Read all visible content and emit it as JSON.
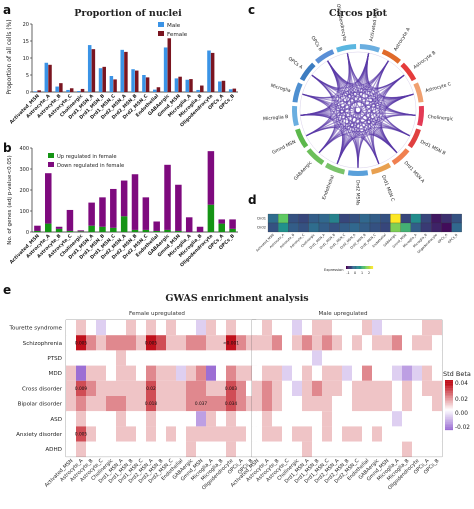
{
  "panel_letters": {
    "a": "a",
    "b": "b",
    "c": "c",
    "d": "d",
    "e": "e"
  },
  "chart_data": [
    {
      "id": "a",
      "type": "bar",
      "title": "Proportion of nuclei",
      "ylabel": "Proportion of all cells (%)",
      "ylim": [
        0,
        20
      ],
      "yticks": [
        0,
        5,
        10,
        15,
        20
      ],
      "categories": [
        "Activated_MSN",
        "Astrocyte_A",
        "Astrocyte_B",
        "Astrocyte_C",
        "Cholinergic",
        "Drd1_MSN_A",
        "Drd1_MSN_B",
        "Drd1_MSN_C",
        "Drd2_MSN_A",
        "Drd2_MSN_B",
        "Drd2_MSN_C",
        "Endothelial",
        "GABAergic",
        "Gmnd_MSN",
        "Microglia_A",
        "Microglia_B",
        "Oligodendrocyte",
        "OPCs_A",
        "OPCs_B"
      ],
      "legend": [
        "Male",
        "Female"
      ],
      "series": [
        {
          "name": "Male",
          "color": "#3a93e6",
          "values": [
            0.2,
            8.6,
            1.6,
            0.6,
            0.3,
            13.8,
            7.0,
            4.7,
            12.4,
            6.7,
            5.0,
            0.7,
            13.1,
            4.0,
            3.6,
            0.6,
            12.2,
            3.1,
            0.8
          ]
        },
        {
          "name": "Female",
          "color": "#7a1520",
          "values": [
            0.5,
            8.0,
            2.6,
            1.1,
            0.9,
            12.6,
            7.4,
            3.7,
            11.8,
            6.3,
            4.3,
            1.4,
            15.8,
            4.5,
            3.8,
            1.9,
            11.5,
            3.3,
            1.0
          ]
        }
      ]
    },
    {
      "id": "b",
      "type": "bar",
      "stacked": true,
      "ylabel": "No. of genes (adj p-value<0.05)",
      "ylim": [
        0,
        400
      ],
      "yticks": [
        0,
        100,
        200,
        300,
        400
      ],
      "categories": [
        "Activated_MSN",
        "Astrocyte_A",
        "Astrocyte_B",
        "Astrocyte_C",
        "Cholinergic",
        "Drd1_MSN_A",
        "Drd1_MSN_B",
        "Drd1_MSN_C",
        "Drd2_MSN_A",
        "Drd2_MSN_B",
        "Drd2_MSN_C",
        "Endothelial",
        "GABAergic",
        "Gmnd_MSN",
        "Microglia_A",
        "Microglia_B",
        "Oligodendrocyte",
        "OPCs_A",
        "OPCs_B"
      ],
      "legend": [
        "Up regulated in female",
        "Down regulated in female"
      ],
      "series": [
        {
          "name": "Up regulated in female",
          "color": "#159415",
          "values": [
            5,
            40,
            15,
            5,
            3,
            30,
            25,
            20,
            75,
            10,
            10,
            5,
            10,
            5,
            0,
            0,
            130,
            40,
            15
          ]
        },
        {
          "name": "Down regulated in female",
          "color": "#7e0a7e",
          "values": [
            25,
            240,
            10,
            100,
            5,
            110,
            140,
            185,
            170,
            265,
            155,
            45,
            310,
            220,
            70,
            25,
            255,
            20,
            45
          ]
        }
      ]
    },
    {
      "id": "d",
      "type": "heatmap",
      "rows": [
        "Drd1",
        "Drd2"
      ],
      "columns": [
        "Activated_MSN",
        "Astrocyte_A",
        "Astrocyte_B",
        "Astrocyte_C",
        "Cholinergic",
        "Drd1_MSN_A",
        "Drd1_MSN_B",
        "Drd1_MSN_C",
        "Drd2_MSN_A",
        "Drd2_MSN_B",
        "Drd2_MSN_C",
        "Endothelial",
        "GABAergic",
        "Gmnd_MSN",
        "Microglia_A",
        "Microglia_B",
        "Oligodendrocyte",
        "OPCs_A",
        "OPCs_B"
      ],
      "values": [
        [
          -0.2,
          1.2,
          -0.5,
          -0.6,
          -0.4,
          -0.3,
          0.2,
          -0.6,
          -0.5,
          -0.3,
          -0.4,
          -0.5,
          2.2,
          -0.6,
          0.4,
          -0.6,
          -1.0,
          -0.8,
          -0.5
        ],
        [
          -0.5,
          0.5,
          -0.4,
          -0.5,
          -0.2,
          -0.4,
          -0.5,
          -0.4,
          -0.3,
          -0.4,
          -0.5,
          -0.6,
          1.4,
          0.9,
          -0.4,
          -0.7,
          -0.9,
          -1.1,
          -0.3
        ]
      ],
      "colorbar_label": "Expression",
      "colorbar_ticks": [
        -1,
        0,
        1,
        2
      ]
    },
    {
      "id": "e",
      "type": "heatmap",
      "title": "GWAS enrichment analysis",
      "facets": [
        "Female upregulated",
        "Male upregulated"
      ],
      "rows": [
        "Tourette syndrome",
        "Schizophrenia",
        "PTSD",
        "MDD",
        "Cross disorder",
        "Bipolar disorder",
        "ASD",
        "Anxiety disorder",
        "ADHD"
      ],
      "columns": [
        "Activated_MSN",
        "Astrocyte_A",
        "Astrocyte_B",
        "Astrocyte_C",
        "Cholinergic",
        "Drd1_MSN_A",
        "Drd1_MSN_B",
        "Drd1_MSN_C",
        "Drd2_MSN_A",
        "Drd2_MSN_B",
        "Drd2_MSN_C",
        "Endothelial",
        "GABAergic",
        "Gmnd_MSN",
        "Microglia_A",
        "Microglia_B",
        "Oligodendrocyte",
        "OPCs_A",
        "OPCs_B"
      ],
      "female_values": [
        [
          0.0,
          0.01,
          0.0,
          -0.01,
          0.0,
          0.0,
          0.01,
          0.0,
          0.01,
          0.0,
          0.01,
          0.0,
          0.0,
          -0.01,
          0.01,
          0.0,
          0.01,
          0.0,
          0.0
        ],
        [
          0.0,
          0.04,
          0.02,
          0.01,
          0.02,
          0.02,
          0.02,
          0.01,
          0.04,
          0.03,
          0.01,
          0.01,
          0.02,
          0.02,
          0.01,
          0.01,
          0.04,
          0.02,
          0.01
        ],
        [
          0.0,
          0.0,
          0.0,
          0.0,
          0.0,
          0.01,
          0.0,
          0.0,
          0.0,
          0.0,
          0.0,
          0.0,
          0.0,
          0.0,
          0.0,
          0.0,
          0.0,
          0.0,
          0.0
        ],
        [
          0.01,
          -0.03,
          0.01,
          0.01,
          0.0,
          0.01,
          0.01,
          0.0,
          0.02,
          0.01,
          0.01,
          -0.01,
          0.01,
          0.02,
          -0.03,
          0.0,
          0.02,
          0.01,
          0.01
        ],
        [
          0.01,
          0.03,
          0.02,
          0.01,
          0.01,
          0.01,
          0.01,
          0.01,
          0.03,
          0.01,
          0.01,
          0.01,
          0.02,
          0.02,
          0.01,
          0.01,
          0.03,
          0.02,
          0.0
        ],
        [
          0.01,
          0.02,
          0.01,
          0.01,
          0.02,
          0.02,
          0.01,
          0.01,
          0.03,
          0.01,
          0.01,
          0.01,
          0.02,
          0.02,
          0.02,
          0.02,
          0.03,
          0.02,
          0.01
        ],
        [
          0.0,
          0.01,
          0.0,
          0.0,
          0.0,
          0.01,
          0.0,
          0.0,
          0.01,
          0.0,
          0.0,
          0.0,
          0.0,
          -0.02,
          0.01,
          0.0,
          0.01,
          0.0,
          0.0
        ],
        [
          0.0,
          0.03,
          0.01,
          0.0,
          0.0,
          0.01,
          0.01,
          0.0,
          0.01,
          0.0,
          0.01,
          0.0,
          0.01,
          0.01,
          0.01,
          0.01,
          0.01,
          0.01,
          0.0
        ],
        [
          0.0,
          0.01,
          0.0,
          0.0,
          0.0,
          0.0,
          0.0,
          0.0,
          0.0,
          0.0,
          0.0,
          0.0,
          0.01,
          0.0,
          0.0,
          0.0,
          0.01,
          0.0,
          0.0
        ]
      ],
      "male_values": [
        [
          0.0,
          0.01,
          0.0,
          0.0,
          -0.01,
          0.0,
          0.01,
          0.01,
          0.0,
          0.0,
          0.0,
          0.01,
          -0.01,
          0.0,
          0.0,
          0.0,
          0.0,
          0.01,
          0.01
        ],
        [
          0.01,
          0.01,
          0.02,
          0.0,
          0.01,
          0.02,
          0.01,
          0.02,
          0.01,
          0.0,
          0.01,
          0.0,
          0.01,
          0.01,
          0.02,
          0.0,
          0.01,
          0.01,
          0.0
        ],
        [
          0.0,
          0.0,
          0.0,
          0.0,
          0.0,
          0.0,
          -0.01,
          0.0,
          0.0,
          0.0,
          0.0,
          0.0,
          0.0,
          0.0,
          0.0,
          0.0,
          0.0,
          0.0,
          0.0
        ],
        [
          0.0,
          0.01,
          0.01,
          -0.01,
          0.0,
          0.01,
          0.0,
          0.01,
          0.01,
          -0.01,
          0.0,
          0.02,
          0.0,
          0.0,
          -0.01,
          -0.02,
          -0.01,
          0.01,
          0.0
        ],
        [
          0.01,
          0.02,
          0.01,
          0.0,
          -0.01,
          0.01,
          0.02,
          0.01,
          0.01,
          0.0,
          0.01,
          0.01,
          0.01,
          0.01,
          0.0,
          0.01,
          0.0,
          0.01,
          0.01
        ],
        [
          0.01,
          0.02,
          0.01,
          0.0,
          0.0,
          0.01,
          0.01,
          0.01,
          0.0,
          0.0,
          0.01,
          0.01,
          0.01,
          0.01,
          0.0,
          0.01,
          0.0,
          0.0,
          0.01
        ],
        [
          0.0,
          0.01,
          0.0,
          0.0,
          0.0,
          0.0,
          0.0,
          0.01,
          0.0,
          0.0,
          0.0,
          0.0,
          0.0,
          0.0,
          -0.01,
          0.0,
          0.0,
          0.0,
          0.0
        ],
        [
          0.0,
          0.01,
          0.01,
          0.0,
          0.01,
          0.01,
          0.0,
          0.01,
          0.0,
          0.01,
          0.01,
          0.0,
          0.01,
          0.0,
          0.0,
          0.0,
          0.0,
          0.0,
          0.0
        ],
        [
          0.0,
          0.0,
          0.0,
          0.0,
          0.0,
          0.01,
          0.0,
          0.0,
          0.0,
          0.0,
          0.0,
          0.0,
          0.0,
          0.0,
          0.0,
          0.01,
          0.0,
          0.0,
          0.0
        ]
      ],
      "annotations": [
        {
          "facet": 0,
          "row": 1,
          "col": 1,
          "text": "0.005"
        },
        {
          "facet": 0,
          "row": 1,
          "col": 8,
          "text": "0.005"
        },
        {
          "facet": 0,
          "row": 1,
          "col": 16,
          "text": "<0.001"
        },
        {
          "facet": 0,
          "row": 4,
          "col": 1,
          "text": "0.009"
        },
        {
          "facet": 0,
          "row": 4,
          "col": 8,
          "text": "0.02"
        },
        {
          "facet": 0,
          "row": 4,
          "col": 16,
          "text": "0.003"
        },
        {
          "facet": 0,
          "row": 5,
          "col": 8,
          "text": "0.018"
        },
        {
          "facet": 0,
          "row": 5,
          "col": 13,
          "text": "0.037"
        },
        {
          "facet": 0,
          "row": 5,
          "col": 16,
          "text": "0.034"
        },
        {
          "facet": 0,
          "row": 7,
          "col": 1,
          "text": "0.005"
        }
      ],
      "colorbar_label": "Std Beta",
      "colorbar_ticks": [
        "0.04",
        "0.02",
        "0.00",
        "-0.02"
      ],
      "colors": {
        "low": "#7b3fc6",
        "mid": "#ffffff",
        "high": "#c0111c"
      }
    },
    {
      "id": "c",
      "type": "chord",
      "title": "Circos plot",
      "sectors": [
        {
          "label": "Activated MSN",
          "color": "#6aaee0"
        },
        {
          "label": "Astrocyte A",
          "color": "#e06a2a"
        },
        {
          "label": "Astrocyte B",
          "color": "#e53b3b"
        },
        {
          "label": "Astrocyte C",
          "color": "#f0a070"
        },
        {
          "label": "Cholinergic",
          "color": "#e33a55"
        },
        {
          "label": "Drd1 MSN B",
          "color": "#e04040"
        },
        {
          "label": "Drd1 MSN A",
          "color": "#f08050"
        },
        {
          "label": "Drd1 MSN C",
          "color": "#e8a050"
        },
        {
          "label": "Drd2 MSNs",
          "color": "#5aa0da"
        },
        {
          "label": "Endothelial",
          "color": "#7ac36a"
        },
        {
          "label": "GABAergic",
          "color": "#6cbf5a"
        },
        {
          "label": "Gmnd MSN",
          "color": "#5cb84c"
        },
        {
          "label": "Microglia B",
          "color": "#6aaee0"
        },
        {
          "label": "Microglia",
          "color": "#4e8fd0"
        },
        {
          "label": "OPCs A",
          "color": "#3c7cc0"
        },
        {
          "label": "OPCs B",
          "color": "#5a8fd6"
        },
        {
          "label": "Oligodendrocyte",
          "color": "#5bb6e0"
        }
      ],
      "link_color": "#5b3aa8"
    }
  ]
}
